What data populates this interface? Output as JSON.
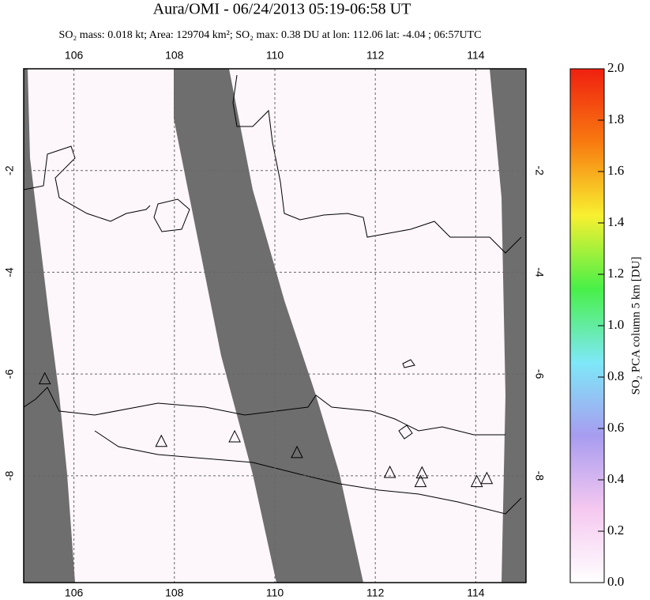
{
  "chart_data": {
    "type": "map",
    "title": "Aura/OMI - 06/24/2013 05:19-06:58 UT",
    "subtitle": "SO₂ mass: 0.018 kt; Area: 129704 km²; SO₂ max: 0.38 DU at lon: 112.06 lat: -4.04 ; 06:57UTC",
    "xlim": [
      105,
      115
    ],
    "ylim": [
      -10.1,
      0
    ],
    "xticks": [
      106,
      108,
      110,
      112,
      114
    ],
    "yticks": [
      -2,
      -4,
      -6,
      -8
    ],
    "grid": true,
    "volcanoes": {
      "lon": [
        105.42,
        107.74,
        109.2,
        110.44,
        112.29,
        112.93,
        112.9,
        114.02,
        114.22
      ],
      "lat": [
        -6.1,
        -7.33,
        -7.24,
        -7.55,
        -7.94,
        -7.95,
        -8.12,
        -8.12,
        -8.06
      ]
    },
    "colorbar": {
      "label": "SO₂ PCA column 5 km [DU]",
      "lim": [
        0,
        2
      ],
      "colors": [
        "#ffffff",
        "#f5c8f0",
        "#a89cf0",
        "#7ee8f8",
        "#48f048",
        "#f8f030",
        "#f87a10",
        "#f02010"
      ],
      "ticks": [
        {
          "value": 0,
          "label": "0.0"
        },
        {
          "value": 0.2,
          "label": "0.2"
        },
        {
          "value": 0.4,
          "label": "0.4"
        },
        {
          "value": 0.6,
          "label": "0.6"
        },
        {
          "value": 0.8,
          "label": "0.8"
        },
        {
          "value": 1,
          "label": "1.0"
        },
        {
          "value": 1.2,
          "label": "1.2"
        },
        {
          "value": 1.4,
          "label": "1.4"
        },
        {
          "value": 1.6,
          "label": "1.6"
        },
        {
          "value": 1.8,
          "label": "1.8"
        },
        {
          "value": 2,
          "label": "2.0"
        }
      ]
    }
  }
}
